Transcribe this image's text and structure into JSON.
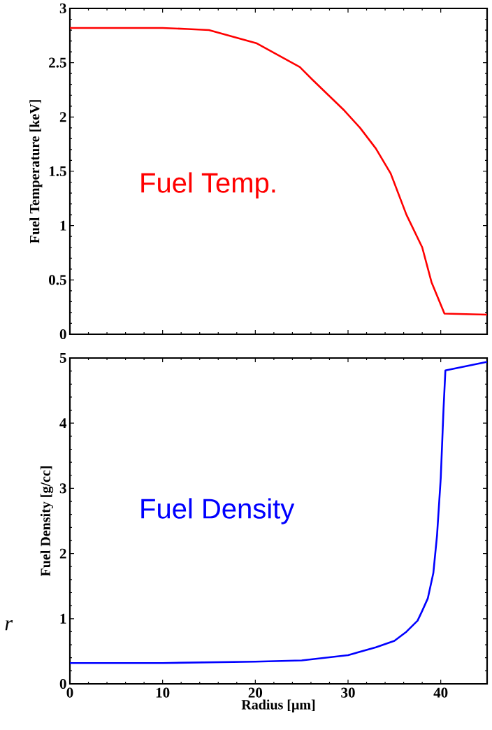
{
  "chart_data": [
    {
      "type": "line",
      "ylabel": "Fuel Temperature [keV]",
      "xlim": [
        0,
        45
      ],
      "xticks": [
        0,
        10,
        20,
        30,
        40
      ],
      "ylim": [
        0,
        3
      ],
      "yticks": [
        0,
        0.5,
        1,
        1.5,
        2,
        2.5,
        3
      ],
      "tick_labels": "y",
      "x": [
        0,
        5,
        10,
        12.7,
        15,
        20.1,
        24.8,
        26.2,
        29.6,
        31.3,
        33,
        34.6,
        36.3,
        38,
        39,
        40.4,
        45
      ],
      "series": [
        {
          "name": "Fuel Temp.",
          "color": "#ff0000",
          "values": [
            2.82,
            2.82,
            2.82,
            2.81,
            2.8,
            2.68,
            2.46,
            2.34,
            2.06,
            1.9,
            1.71,
            1.48,
            1.1,
            0.8,
            0.48,
            0.19,
            0.18
          ]
        }
      ]
    },
    {
      "type": "line",
      "xlabel": "Radius [μm]",
      "ylabel": "Fuel Density [g/cc]",
      "xlim": [
        0,
        45
      ],
      "xticks": [
        0,
        10,
        20,
        30,
        40
      ],
      "ylim": [
        0,
        5
      ],
      "yticks": [
        0,
        1,
        2,
        3,
        4,
        5
      ],
      "annotations": [
        "r"
      ],
      "x": [
        0,
        10,
        20,
        25,
        30,
        33,
        35,
        36.3,
        37.5,
        38,
        38.6,
        39.2,
        39.6,
        40,
        40.3,
        40.5,
        45
      ],
      "series": [
        {
          "name": "Fuel Density",
          "color": "#0000ff",
          "values": [
            0.32,
            0.32,
            0.34,
            0.36,
            0.44,
            0.56,
            0.66,
            0.8,
            0.97,
            1.12,
            1.31,
            1.7,
            2.28,
            3.16,
            4.22,
            4.81,
            4.94
          ]
        }
      ]
    }
  ]
}
